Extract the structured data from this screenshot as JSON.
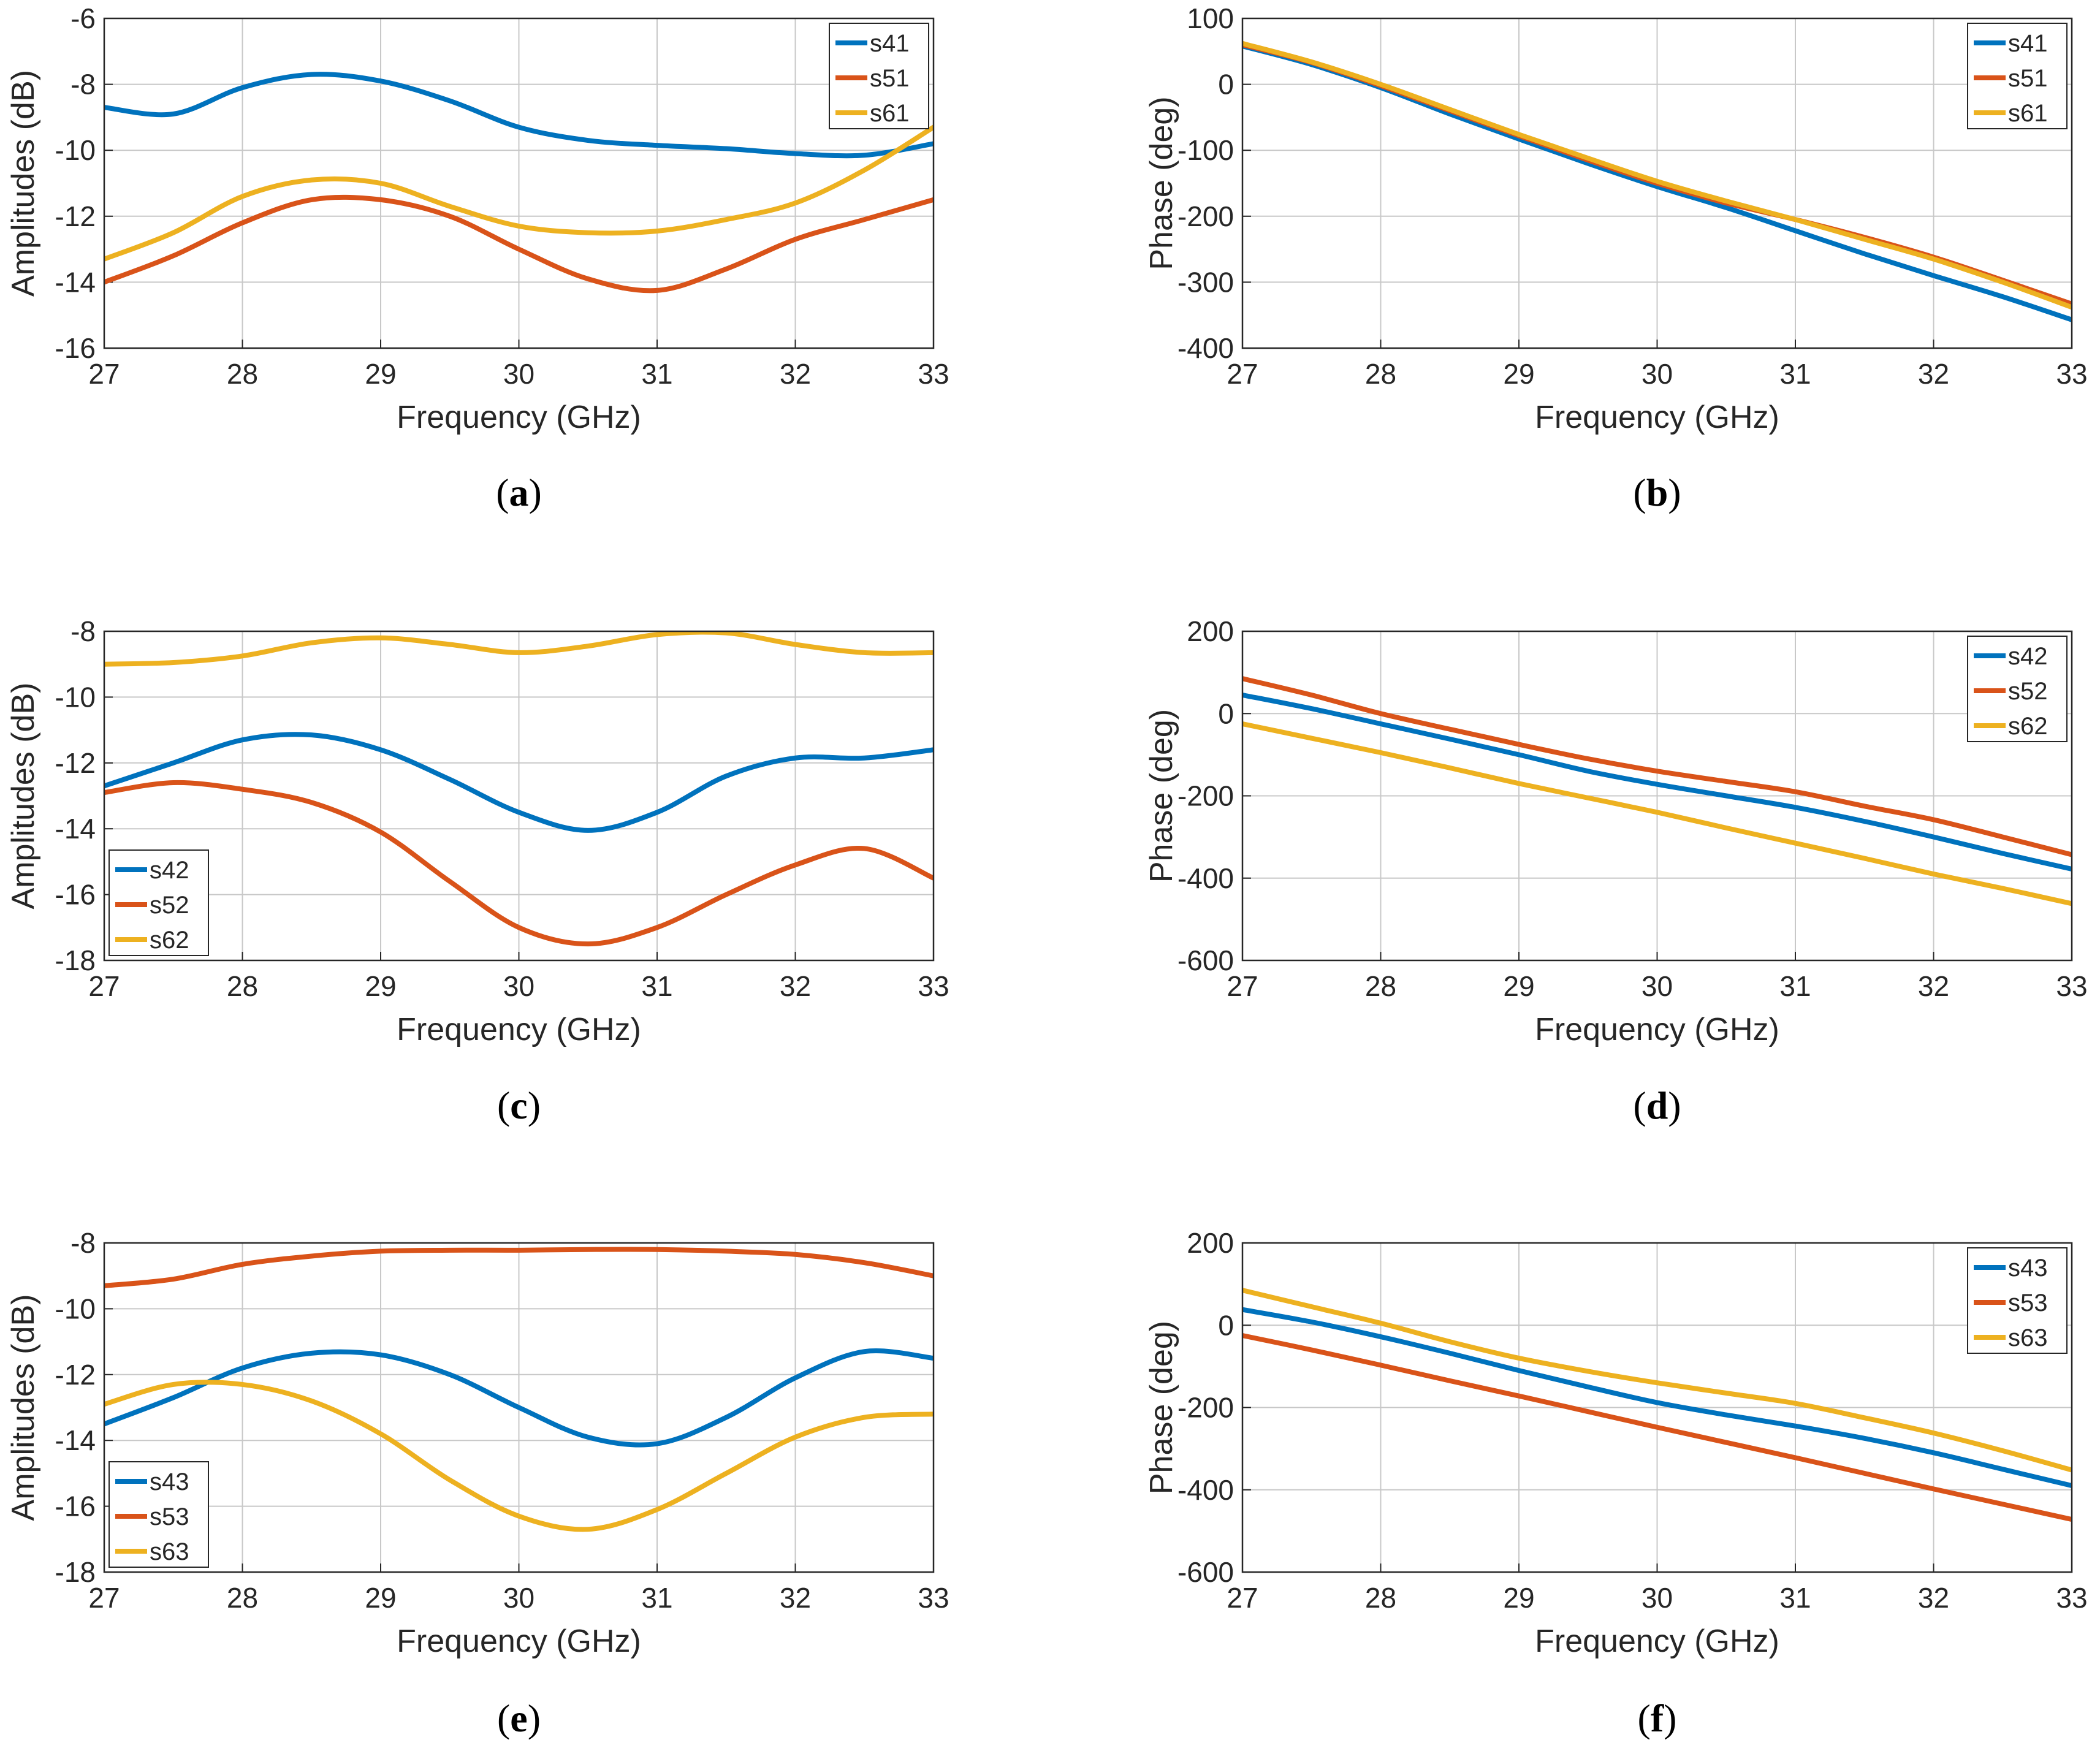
{
  "figure": {
    "layout": "3 rows x 2 columns of line charts"
  },
  "chart_data": [
    {
      "type": "line",
      "caption_letter": "a",
      "xlabel": "Frequency (GHz)",
      "ylabel": "Amplitudes (dB)",
      "xlim": [
        27,
        33
      ],
      "ylim": [
        -16,
        -6
      ],
      "xticks": [
        "27",
        "28",
        "29",
        "30",
        "31",
        "32",
        "33"
      ],
      "yticks": [
        "-16",
        "-14",
        "-12",
        "-10",
        "-8",
        "-6"
      ],
      "grid": true,
      "legend_position": "top-right",
      "x": [
        27,
        27.5,
        28,
        28.5,
        29,
        29.5,
        30,
        30.5,
        31,
        31.5,
        32,
        32.5,
        33
      ],
      "series": [
        {
          "name": "s41",
          "color": "#0072BD",
          "values": [
            -8.7,
            -8.9,
            -8.1,
            -7.7,
            -7.9,
            -8.5,
            -9.3,
            -9.7,
            -9.85,
            -9.95,
            -10.1,
            -10.15,
            -9.8
          ]
        },
        {
          "name": "s51",
          "color": "#D95319",
          "values": [
            -14.0,
            -13.2,
            -12.2,
            -11.5,
            -11.5,
            -12.0,
            -13.0,
            -13.9,
            -14.25,
            -13.6,
            -12.7,
            -12.1,
            -11.5
          ]
        },
        {
          "name": "s61",
          "color": "#EDB120",
          "values": [
            -13.3,
            -12.5,
            -11.4,
            -10.9,
            -11.0,
            -11.7,
            -12.3,
            -12.5,
            -12.45,
            -12.1,
            -11.6,
            -10.6,
            -9.3
          ]
        }
      ]
    },
    {
      "type": "line",
      "caption_letter": "b",
      "xlabel": "Frequency (GHz)",
      "ylabel": "Phase (deg)",
      "xlim": [
        27,
        33
      ],
      "ylim": [
        -400,
        100
      ],
      "xticks": [
        "27",
        "28",
        "29",
        "30",
        "31",
        "32",
        "33"
      ],
      "yticks": [
        "-400",
        "-300",
        "-200",
        "-100",
        "0",
        "100"
      ],
      "grid": true,
      "legend_position": "top-right",
      "x": [
        27,
        27.5,
        28,
        28.5,
        29,
        29.5,
        30,
        30.5,
        31,
        31.5,
        32,
        32.5,
        33
      ],
      "series": [
        {
          "name": "s41",
          "color": "#0072BD",
          "values": [
            58,
            30,
            -5,
            -45,
            -83,
            -120,
            -155,
            -187,
            -222,
            -257,
            -290,
            -322,
            -357
          ]
        },
        {
          "name": "s51",
          "color": "#D95319",
          "values": [
            60,
            33,
            -2,
            -40,
            -78,
            -115,
            -150,
            -180,
            -205,
            -232,
            -262,
            -297,
            -333
          ]
        },
        {
          "name": "s61",
          "color": "#EDB120",
          "values": [
            62,
            34,
            0,
            -38,
            -76,
            -112,
            -147,
            -177,
            -205,
            -235,
            -265,
            -300,
            -338
          ]
        }
      ]
    },
    {
      "type": "line",
      "caption_letter": "c",
      "xlabel": "Frequency (GHz)",
      "ylabel": "Amplitudes (dB)",
      "xlim": [
        27,
        33
      ],
      "ylim": [
        -18,
        -8
      ],
      "xticks": [
        "27",
        "28",
        "29",
        "30",
        "31",
        "32",
        "33"
      ],
      "yticks": [
        "-18",
        "-16",
        "-14",
        "-12",
        "-10",
        "-8"
      ],
      "grid": true,
      "legend_position": "bottom-left",
      "x": [
        27,
        27.5,
        28,
        28.5,
        29,
        29.5,
        30,
        30.5,
        31,
        31.5,
        32,
        32.5,
        33
      ],
      "series": [
        {
          "name": "s42",
          "color": "#0072BD",
          "values": [
            -12.7,
            -12.0,
            -11.3,
            -11.15,
            -11.6,
            -12.5,
            -13.5,
            -14.05,
            -13.5,
            -12.4,
            -11.85,
            -11.85,
            -11.6
          ]
        },
        {
          "name": "s52",
          "color": "#D95319",
          "values": [
            -12.9,
            -12.6,
            -12.8,
            -13.2,
            -14.1,
            -15.6,
            -17.0,
            -17.5,
            -17.0,
            -16.0,
            -15.1,
            -14.6,
            -15.5
          ]
        },
        {
          "name": "s62",
          "color": "#EDB120",
          "values": [
            -9.0,
            -8.95,
            -8.75,
            -8.35,
            -8.2,
            -8.4,
            -8.65,
            -8.45,
            -8.1,
            -8.05,
            -8.4,
            -8.65,
            -8.65
          ]
        }
      ]
    },
    {
      "type": "line",
      "caption_letter": "d",
      "xlabel": "Frequency (GHz)",
      "ylabel": "Phase (deg)",
      "xlim": [
        27,
        33
      ],
      "ylim": [
        -600,
        200
      ],
      "xticks": [
        "27",
        "28",
        "29",
        "30",
        "31",
        "32",
        "33"
      ],
      "yticks": [
        "-600",
        "-400",
        "-200",
        "0",
        "200"
      ],
      "grid": true,
      "legend_position": "top-right",
      "x": [
        27,
        27.5,
        28,
        28.5,
        29,
        29.5,
        30,
        30.5,
        31,
        31.5,
        32,
        32.5,
        33
      ],
      "series": [
        {
          "name": "s42",
          "color": "#0072BD",
          "values": [
            45,
            12,
            -25,
            -62,
            -100,
            -140,
            -172,
            -200,
            -228,
            -262,
            -300,
            -340,
            -378
          ]
        },
        {
          "name": "s52",
          "color": "#D95319",
          "values": [
            85,
            45,
            0,
            -38,
            -75,
            -110,
            -140,
            -165,
            -190,
            -225,
            -258,
            -300,
            -343
          ]
        },
        {
          "name": "s62",
          "color": "#EDB120",
          "values": [
            -25,
            -60,
            -95,
            -132,
            -170,
            -205,
            -240,
            -278,
            -315,
            -352,
            -390,
            -425,
            -462
          ]
        }
      ]
    },
    {
      "type": "line",
      "caption_letter": "e",
      "xlabel": "Frequency (GHz)",
      "ylabel": "Amplitudes (dB)",
      "xlim": [
        27,
        33
      ],
      "ylim": [
        -18,
        -8
      ],
      "xticks": [
        "27",
        "28",
        "29",
        "30",
        "31",
        "32",
        "33"
      ],
      "yticks": [
        "-18",
        "-16",
        "-14",
        "-12",
        "-10",
        "-8"
      ],
      "grid": true,
      "legend_position": "bottom-left",
      "x": [
        27,
        27.5,
        28,
        28.5,
        29,
        29.5,
        30,
        30.5,
        31,
        31.5,
        32,
        32.5,
        33
      ],
      "series": [
        {
          "name": "s43",
          "color": "#0072BD",
          "values": [
            -13.5,
            -12.7,
            -11.8,
            -11.35,
            -11.4,
            -12.0,
            -13.0,
            -13.9,
            -14.1,
            -13.3,
            -12.1,
            -11.3,
            -11.5
          ]
        },
        {
          "name": "s53",
          "color": "#D95319",
          "values": [
            -9.3,
            -9.1,
            -8.65,
            -8.4,
            -8.25,
            -8.22,
            -8.22,
            -8.2,
            -8.2,
            -8.25,
            -8.35,
            -8.6,
            -9.0
          ]
        },
        {
          "name": "s63",
          "color": "#EDB120",
          "values": [
            -12.9,
            -12.3,
            -12.3,
            -12.8,
            -13.8,
            -15.2,
            -16.3,
            -16.7,
            -16.1,
            -15.0,
            -13.9,
            -13.3,
            -13.2
          ]
        }
      ]
    },
    {
      "type": "line",
      "caption_letter": "f",
      "xlabel": "Frequency (GHz)",
      "ylabel": "Phase (deg)",
      "xlim": [
        27,
        33
      ],
      "ylim": [
        -600,
        200
      ],
      "xticks": [
        "27",
        "28",
        "29",
        "30",
        "31",
        "32",
        "33"
      ],
      "yticks": [
        "-600",
        "-400",
        "-200",
        "0",
        "200"
      ],
      "grid": true,
      "legend_position": "top-right",
      "x": [
        27,
        27.5,
        28,
        28.5,
        29,
        29.5,
        30,
        30.5,
        31,
        31.5,
        32,
        32.5,
        33
      ],
      "series": [
        {
          "name": "s43",
          "color": "#0072BD",
          "values": [
            38,
            8,
            -28,
            -68,
            -110,
            -150,
            -188,
            -218,
            -245,
            -275,
            -310,
            -350,
            -390
          ]
        },
        {
          "name": "s53",
          "color": "#D95319",
          "values": [
            -25,
            -60,
            -97,
            -135,
            -172,
            -210,
            -248,
            -285,
            -322,
            -360,
            -398,
            -435,
            -472
          ]
        },
        {
          "name": "s63",
          "color": "#EDB120",
          "values": [
            85,
            45,
            5,
            -40,
            -80,
            -112,
            -140,
            -165,
            -190,
            -225,
            -262,
            -305,
            -352
          ]
        }
      ]
    }
  ]
}
